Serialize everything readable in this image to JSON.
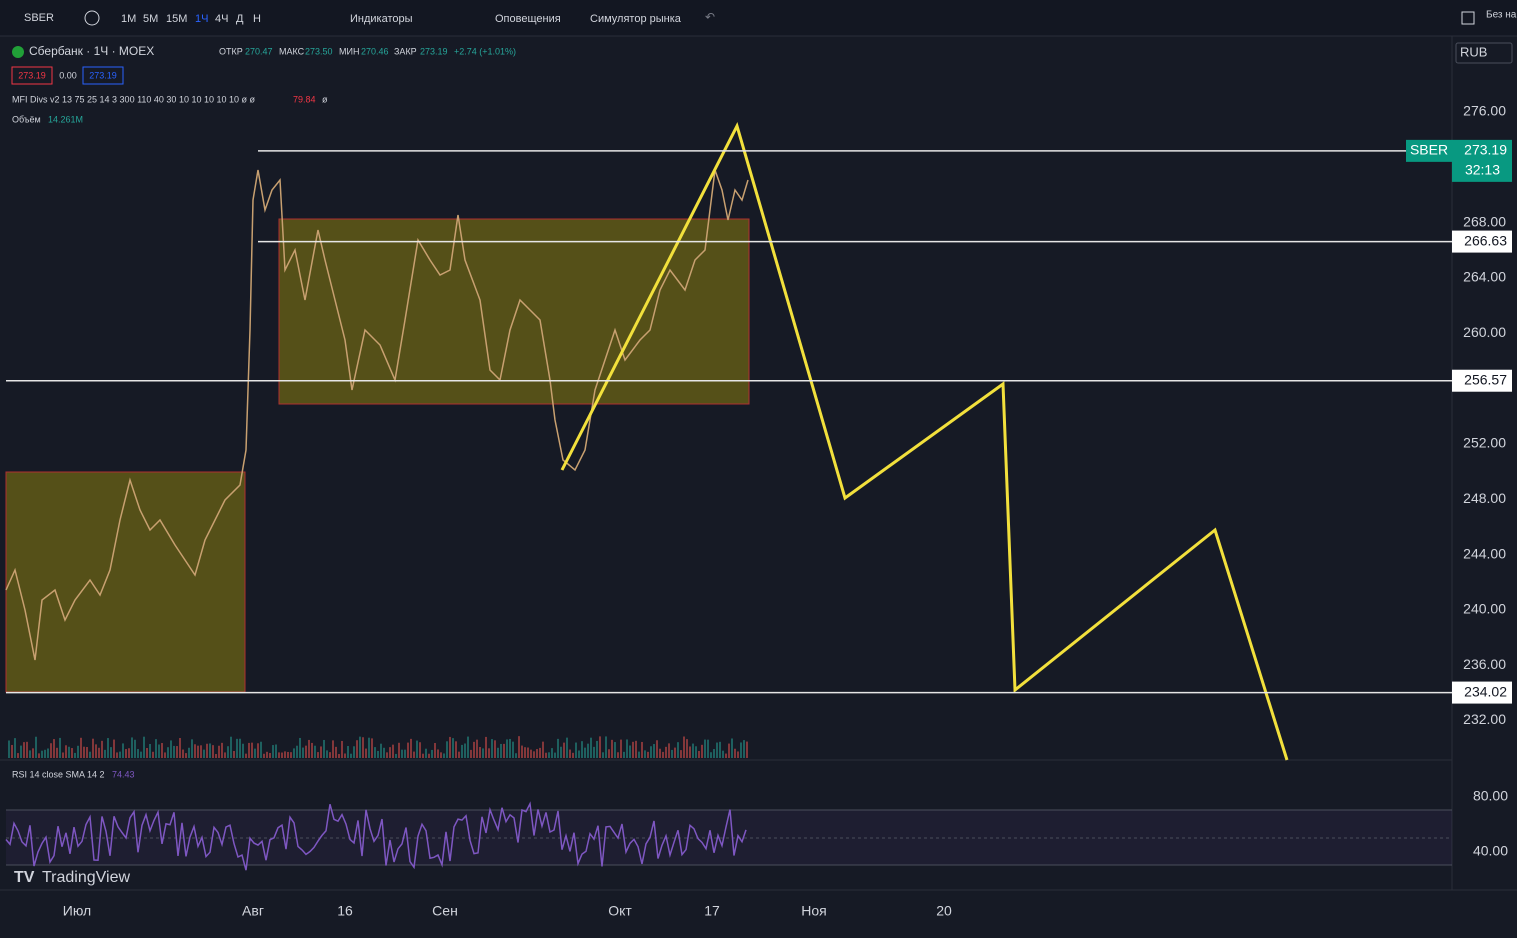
{
  "toolbar": {
    "symbol": "SBER",
    "intervals": [
      "1M",
      "5M",
      "15M",
      "1Ч",
      "4Ч",
      "Д",
      "Н"
    ],
    "indicators": "Индикаторы",
    "alerts": "Оповещения",
    "replay": "Симулятор рынка",
    "right": "Без на"
  },
  "legend": {
    "title": "Сбербанк · 1Ч · MOEX",
    "ohlc": [
      {
        "label": "ОТКР",
        "value": "270.47"
      },
      {
        "label": "МАКС",
        "value": "273.50"
      },
      {
        "label": "МИН",
        "value": "270.46"
      },
      {
        "label": "ЗАКР",
        "value": "273.19"
      }
    ],
    "change": "+2.74 (+1.01%)",
    "bid": "273.19",
    "spread": "0.00",
    "ask": "273.19",
    "mfi": "MFI Divs v2 13 75 25 14 3 300 110 40 30 10 10 10 10 10 ø ø",
    "mfi_value": "79.84",
    "mfi_tail": "ø",
    "volume_label": "Объём",
    "volume": "14.261M"
  },
  "price_axis": {
    "currency": "RUB",
    "labels": [
      "276.00",
      "268.00",
      "264.00",
      "260.00",
      "252.00",
      "248.00",
      "244.00",
      "240.00",
      "236.00",
      "232.00"
    ],
    "symbol_tag": "SBER",
    "last": "273.19",
    "countdown": "32:13",
    "levels": [
      "273.19",
      "266.63",
      "256.57",
      "234.02"
    ]
  },
  "rsi": {
    "label": "RSI 14 close SMA 14 2",
    "value": "74.43",
    "axis": [
      "80.00",
      "40.00"
    ]
  },
  "time_axis": [
    "Июл",
    "Авг",
    "16",
    "Сен",
    "Окт",
    "17",
    "Ноя",
    "20"
  ],
  "brand": "TradingView"
}
